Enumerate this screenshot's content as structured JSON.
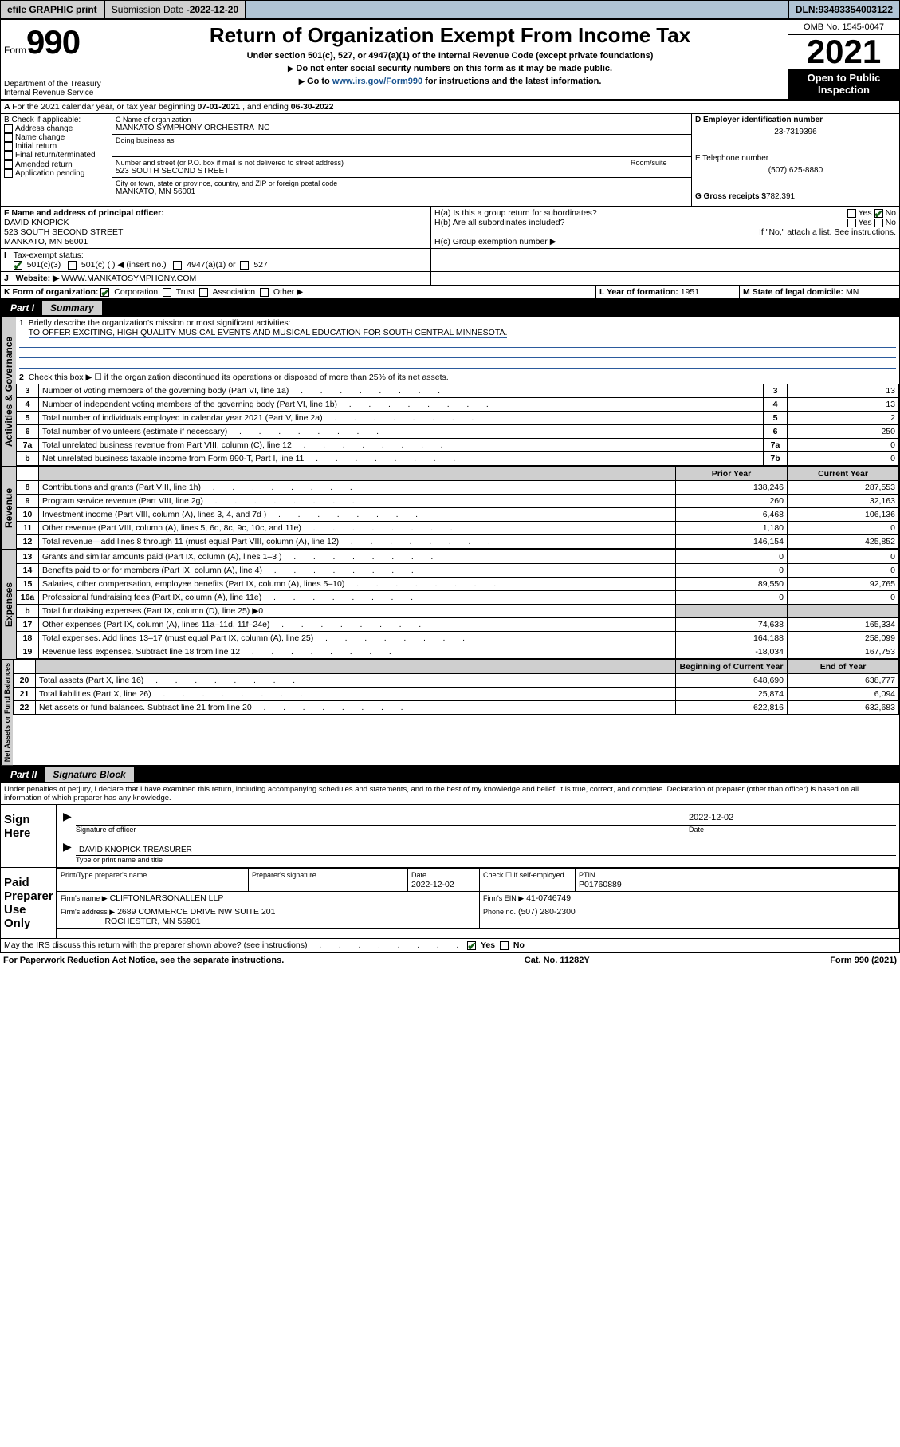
{
  "topbar": {
    "efile": "efile GRAPHIC print",
    "submission_label": "Submission Date - ",
    "submission_date": "2022-12-20",
    "dln_label": "DLN: ",
    "dln": "93493354003122"
  },
  "header": {
    "form_prefix": "Form",
    "form_no": "990",
    "dept": "Department of the Treasury",
    "irs": "Internal Revenue Service",
    "title": "Return of Organization Exempt From Income Tax",
    "subtitle": "Under section 501(c), 527, or 4947(a)(1) of the Internal Revenue Code (except private foundations)",
    "note1": "Do not enter social security numbers on this form as it may be made public.",
    "note2_pre": "Go to ",
    "note2_link": "www.irs.gov/Form990",
    "note2_post": " for instructions and the latest information.",
    "omb": "OMB No. 1545-0047",
    "year": "2021",
    "open_pub1": "Open to Public",
    "open_pub2": "Inspection"
  },
  "A": {
    "text_pre": "For the 2021 calendar year, or tax year beginning ",
    "begin": "07-01-2021",
    "mid": " , and ending ",
    "end": "06-30-2022"
  },
  "B": {
    "label": "B Check if applicable:",
    "items": [
      "Address change",
      "Name change",
      "Initial return",
      "Final return/terminated",
      "Amended return",
      "Application pending"
    ]
  },
  "C": {
    "name_label": "C Name of organization",
    "name": "MANKATO SYMPHONY ORCHESTRA INC",
    "dba_label": "Doing business as",
    "street_label": "Number and street (or P.O. box if mail is not delivered to street address)",
    "room_label": "Room/suite",
    "street": "523 SOUTH SECOND STREET",
    "city_label": "City or town, state or province, country, and ZIP or foreign postal code",
    "city": "MANKATO, MN  56001"
  },
  "D": {
    "label": "D Employer identification number",
    "value": "23-7319396"
  },
  "E": {
    "label": "E Telephone number",
    "value": "(507) 625-8880"
  },
  "G": {
    "label": "G Gross receipts $",
    "value": "782,391"
  },
  "F": {
    "label": "F  Name and address of principal officer:",
    "name": "DAVID KNOPICK",
    "addr1": "523 SOUTH SECOND STREET",
    "addr2": "MANKATO, MN  56001"
  },
  "H": {
    "a_label": "H(a)  Is this a group return for subordinates?",
    "yes": "Yes",
    "no": "No",
    "b_label": "H(b)  Are all subordinates included?",
    "b_note": "If \"No,\" attach a list. See instructions.",
    "c_label": "H(c)  Group exemption number ▶"
  },
  "I": {
    "label": "Tax-exempt status:",
    "opt1": "501(c)(3)",
    "opt2": "501(c) (  ) ◀ (insert no.)",
    "opt3": "4947(a)(1) or",
    "opt4": "527"
  },
  "J": {
    "label": "Website: ▶",
    "value": "WWW.MANKATOSYMPHONY.COM"
  },
  "K": {
    "label": "K Form of organization:",
    "opts": [
      "Corporation",
      "Trust",
      "Association",
      "Other ▶"
    ]
  },
  "L": {
    "label": "L Year of formation:",
    "value": "1951"
  },
  "M": {
    "label": "M State of legal domicile:",
    "value": "MN"
  },
  "part1": {
    "bar": "Part I",
    "title": "Summary",
    "l1_label": "Briefly describe the organization's mission or most significant activities:",
    "l1_text": "TO OFFER EXCITING, HIGH QUALITY MUSICAL EVENTS AND MUSICAL EDUCATION FOR SOUTH CENTRAL MINNESOTA.",
    "l2": "Check this box ▶ ☐  if the organization discontinued its operations or disposed of more than 25% of its net assets.",
    "rows_gov": [
      {
        "n": "3",
        "d": "Number of voting members of the governing body (Part VI, line 1a)",
        "i": "3",
        "v": "13"
      },
      {
        "n": "4",
        "d": "Number of independent voting members of the governing body (Part VI, line 1b)",
        "i": "4",
        "v": "13"
      },
      {
        "n": "5",
        "d": "Total number of individuals employed in calendar year 2021 (Part V, line 2a)",
        "i": "5",
        "v": "2"
      },
      {
        "n": "6",
        "d": "Total number of volunteers (estimate if necessary)",
        "i": "6",
        "v": "250"
      },
      {
        "n": "7a",
        "d": "Total unrelated business revenue from Part VIII, column (C), line 12",
        "i": "7a",
        "v": "0"
      },
      {
        "n": "b",
        "d": "Net unrelated business taxable income from Form 990-T, Part I, line 11",
        "i": "7b",
        "v": "0"
      }
    ],
    "col_prior": "Prior Year",
    "col_curr": "Current Year",
    "rows_rev": [
      {
        "n": "8",
        "d": "Contributions and grants (Part VIII, line 1h)",
        "p": "138,246",
        "c": "287,553"
      },
      {
        "n": "9",
        "d": "Program service revenue (Part VIII, line 2g)",
        "p": "260",
        "c": "32,163"
      },
      {
        "n": "10",
        "d": "Investment income (Part VIII, column (A), lines 3, 4, and 7d )",
        "p": "6,468",
        "c": "106,136"
      },
      {
        "n": "11",
        "d": "Other revenue (Part VIII, column (A), lines 5, 6d, 8c, 9c, 10c, and 11e)",
        "p": "1,180",
        "c": "0"
      },
      {
        "n": "12",
        "d": "Total revenue—add lines 8 through 11 (must equal Part VIII, column (A), line 12)",
        "p": "146,154",
        "c": "425,852"
      }
    ],
    "rows_exp": [
      {
        "n": "13",
        "d": "Grants and similar amounts paid (Part IX, column (A), lines 1–3 )",
        "p": "0",
        "c": "0"
      },
      {
        "n": "14",
        "d": "Benefits paid to or for members (Part IX, column (A), line 4)",
        "p": "0",
        "c": "0"
      },
      {
        "n": "15",
        "d": "Salaries, other compensation, employee benefits (Part IX, column (A), lines 5–10)",
        "p": "89,550",
        "c": "92,765"
      },
      {
        "n": "16a",
        "d": "Professional fundraising fees (Part IX, column (A), line 11e)",
        "p": "0",
        "c": "0"
      },
      {
        "n": "b",
        "d": "Total fundraising expenses (Part IX, column (D), line 25) ▶0",
        "p": "",
        "c": "",
        "shade": true
      },
      {
        "n": "17",
        "d": "Other expenses (Part IX, column (A), lines 11a–11d, 11f–24e)",
        "p": "74,638",
        "c": "165,334"
      },
      {
        "n": "18",
        "d": "Total expenses. Add lines 13–17 (must equal Part IX, column (A), line 25)",
        "p": "164,188",
        "c": "258,099"
      },
      {
        "n": "19",
        "d": "Revenue less expenses. Subtract line 18 from line 12",
        "p": "-18,034",
        "c": "167,753"
      }
    ],
    "col_beg": "Beginning of Current Year",
    "col_end": "End of Year",
    "rows_net": [
      {
        "n": "20",
        "d": "Total assets (Part X, line 16)",
        "p": "648,690",
        "c": "638,777"
      },
      {
        "n": "21",
        "d": "Total liabilities (Part X, line 26)",
        "p": "25,874",
        "c": "6,094"
      },
      {
        "n": "22",
        "d": "Net assets or fund balances. Subtract line 21 from line 20",
        "p": "622,816",
        "c": "632,683"
      }
    ],
    "vlabels": {
      "gov": "Activities & Governance",
      "rev": "Revenue",
      "exp": "Expenses",
      "net": "Net Assets or Fund Balances"
    }
  },
  "part2": {
    "bar": "Part II",
    "title": "Signature Block",
    "decl": "Under penalties of perjury, I declare that I have examined this return, including accompanying schedules and statements, and to the best of my knowledge and belief, it is true, correct, and complete. Declaration of preparer (other than officer) is based on all information of which preparer has any knowledge.",
    "sign_here": "Sign Here",
    "sig_officer": "Signature of officer",
    "date_lbl": "Date",
    "date": "2022-12-02",
    "officer_name": "DAVID KNOPICK  TREASURER",
    "officer_sub": "Type or print name and title",
    "paid": "Paid Preparer Use Only",
    "pt_name_lbl": "Print/Type preparer's name",
    "pt_sig_lbl": "Preparer's signature",
    "pt_date_lbl": "Date",
    "pt_date": "2022-12-02",
    "pt_check": "Check ☐ if self-employed",
    "ptin_lbl": "PTIN",
    "ptin": "P01760889",
    "firm_name_lbl": "Firm's name   ▶",
    "firm_name": "CLIFTONLARSONALLEN LLP",
    "firm_ein_lbl": "Firm's EIN ▶",
    "firm_ein": "41-0746749",
    "firm_addr_lbl": "Firm's address ▶",
    "firm_addr1": "2689 COMMERCE DRIVE NW SUITE 201",
    "firm_addr2": "ROCHESTER, MN  55901",
    "phone_lbl": "Phone no.",
    "phone": "(507) 280-2300",
    "discuss": "May the IRS discuss this return with the preparer shown above? (see instructions)"
  },
  "footer": {
    "left": "For Paperwork Reduction Act Notice, see the separate instructions.",
    "mid": "Cat. No. 11282Y",
    "right": "Form 990 (2021)"
  }
}
